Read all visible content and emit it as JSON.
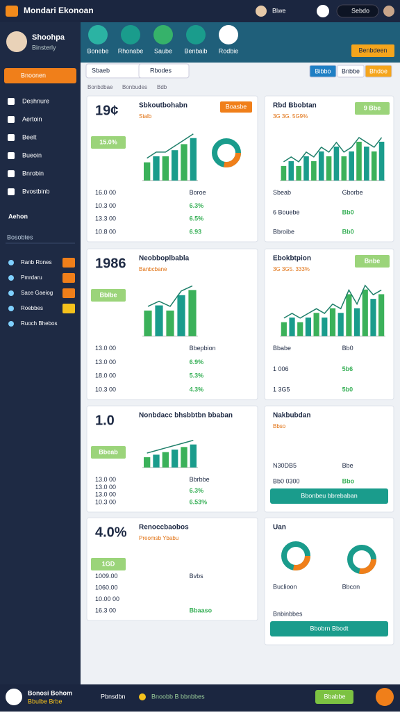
{
  "topbar": {
    "title": "Mondari Ekonoan",
    "user": "Blwe",
    "badge": "Sebdo"
  },
  "profile": {
    "name": "Shoohpa",
    "role": "Binsterly"
  },
  "nav_tabs": [
    "Bonebe",
    "Rhonabe",
    "Saube",
    "Benbaib",
    "Rodbie"
  ],
  "header_button": "Benbdeen",
  "sidebar": {
    "primary_button": "Bnoonen",
    "items": [
      "Deshnure",
      "Aertoin",
      "Beelt",
      "Bueoin",
      "Bnrobin",
      "Bvostbinb"
    ],
    "section": "Aehon",
    "group_label": "Bosobtes",
    "links": [
      "Ranb Rones",
      "Pmrdaru",
      "Sace Gaeiog",
      "Roebbes",
      "Ruoch Bhebos"
    ]
  },
  "toolbar": {
    "search": "Sbaeb",
    "filter": "Rbodes",
    "buttons": [
      "Bibbo",
      "Bnbbe",
      "Bhdoe"
    ]
  },
  "breadcrumb": [
    "Bonbdbae",
    "Bonbudes",
    "Bdb"
  ],
  "cards": [
    {
      "title": "Sbkoutbohabn",
      "value": "19¢",
      "sub": "Stalb",
      "badge": "15.0%",
      "action": "Boasbe",
      "bars": [
        3,
        4,
        4,
        5,
        6,
        7
      ],
      "ylim": [
        0,
        8
      ],
      "left": [
        "16.0 00",
        "10.3 00",
        "13.3 00",
        "10.8 00"
      ],
      "right": [
        "Boroe",
        "6.3%",
        "6.5%",
        "6.93"
      ]
    },
    {
      "title": "Rbd Bbobtan",
      "sub": "3G 3G. 5G9%",
      "badge": "9 Bbe",
      "bars": [
        3,
        4,
        3,
        5,
        4,
        6,
        5,
        7,
        5,
        6,
        8,
        7,
        6,
        8
      ],
      "ylim": [
        0,
        10
      ],
      "left": [
        "Sbeab",
        "6 Bouebe",
        "Bbroibe"
      ],
      "right": [
        "Gborbe",
        "Bb0",
        "Bb0"
      ]
    },
    {
      "title": "Neobboplbabla",
      "value": "1986",
      "sub": "Banbcbane",
      "badge": "Bblbe",
      "bars": [
        5,
        6,
        5,
        8,
        9
      ],
      "ylim": [
        0,
        10
      ],
      "left": [
        "13.0 00",
        "13.0 00",
        "18.0 00",
        "10.3 00"
      ],
      "right": [
        "Bbepbion",
        "6.9%",
        "5.3%",
        "4.3%"
      ]
    },
    {
      "title": "Ebokbtpion",
      "sub": "3G 3G5. 333%",
      "badge": "Bnbe",
      "bars": [
        3,
        4,
        3,
        4,
        5,
        4,
        6,
        5,
        9,
        6,
        10,
        8,
        9
      ],
      "ylim": [
        0,
        11
      ],
      "left": [
        "Bbabe",
        "1 006",
        "1 3G5"
      ],
      "right": [
        "Bb0",
        "5b6",
        "5b0"
      ]
    },
    {
      "title": "Nonbdacc bhsbbtbn bbaban",
      "value": "1.0",
      "badge": "Bbeab",
      "bars": [
        4,
        5,
        6,
        7,
        8,
        9
      ],
      "ylim": [
        0,
        10
      ],
      "left": [
        "13.0 00",
        "13.0 00",
        "13.0 00",
        "10.3 00"
      ],
      "right": [
        "Bbrbbe",
        "6.3%",
        "6.53%"
      ]
    },
    {
      "title": "Nakbubdan",
      "sub": "Bbso",
      "left": [
        "N30DB5",
        "Bb0 0300"
      ],
      "right": [
        "Bbe",
        "Bbo"
      ],
      "button": "Bbonbeu bbrebaban"
    },
    {
      "title": "Renoccbaobos",
      "value": "4.0%",
      "sub": "Preomsb Ybabu",
      "badge": "1GD",
      "left": [
        "1009.00",
        "1060.00",
        "10.00 00",
        "16.3 00"
      ],
      "right": [
        "Bvbs",
        "Bbaaso"
      ]
    },
    {
      "title": "Uan",
      "left": [
        "Buclioon",
        "Bnbinbbes"
      ],
      "right": [
        "Bbcon"
      ],
      "button": "Bbobrn Bbodt"
    }
  ],
  "bottombar": {
    "name": "Bonosi Bohom",
    "role": "Bbulbe Brbe",
    "link": "Pbnsdbn",
    "status": "Bnoobb B bbnbbes",
    "button": "Bbabbe"
  }
}
